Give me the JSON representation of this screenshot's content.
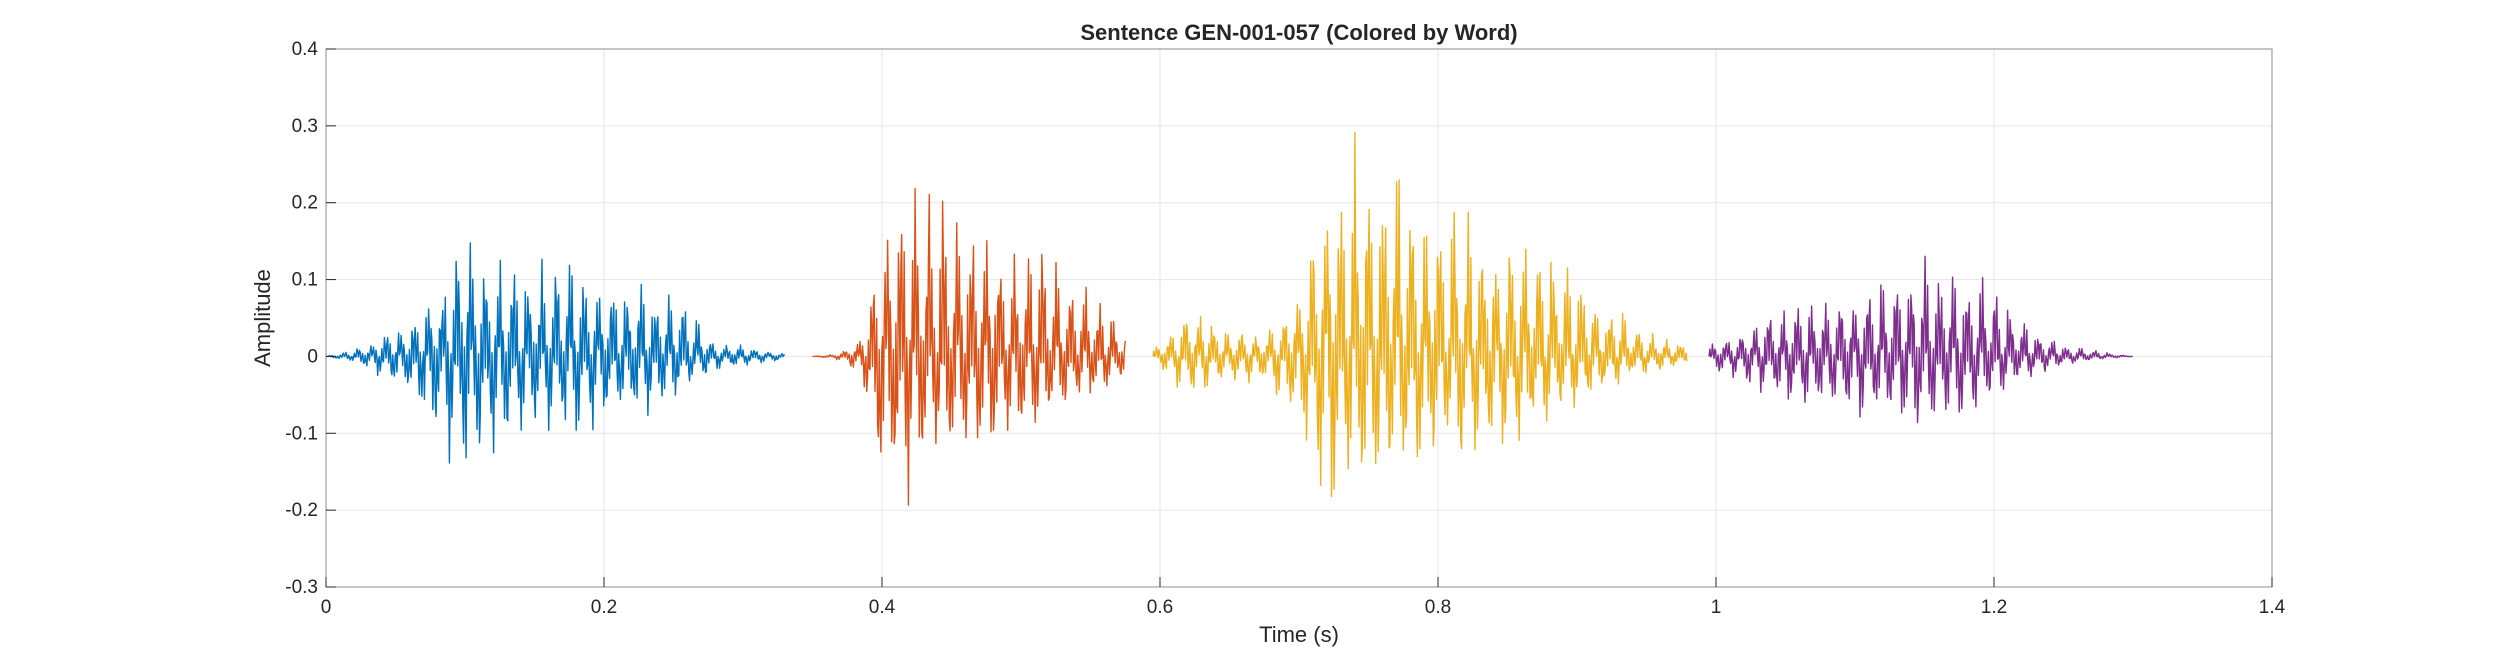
{
  "chart_data": {
    "type": "line",
    "title": "Sentence GEN-001-057 (Colored by Word)",
    "xlabel": "Time (s)",
    "ylabel": "Amplitude",
    "xlim": [
      0,
      1.4
    ],
    "ylim": [
      -0.3,
      0.4
    ],
    "xticks": [
      0,
      0.2,
      0.4,
      0.6,
      0.8,
      1,
      1.2,
      1.4
    ],
    "xtick_labels": [
      "0",
      "0.2",
      "0.4",
      "0.6",
      "0.8",
      "1",
      "1.2",
      "1.4"
    ],
    "yticks": [
      -0.3,
      -0.2,
      -0.1,
      0,
      0.1,
      0.2,
      0.3,
      0.4
    ],
    "ytick_labels": [
      "-0.3",
      "-0.2",
      "-0.1",
      "0",
      "0.1",
      "0.2",
      "0.3",
      "0.4"
    ],
    "grid": true,
    "series": [
      {
        "color": "#0072BD",
        "x": [
          0.0,
          0.02,
          0.04,
          0.06,
          0.08,
          0.1,
          0.12,
          0.14,
          0.16,
          0.18,
          0.2,
          0.22,
          0.24,
          0.26,
          0.28,
          0.3,
          0.33
        ],
        "upper": [
          0.0,
          0.01,
          0.03,
          0.06,
          0.1,
          0.18,
          0.14,
          0.12,
          0.14,
          0.13,
          0.12,
          0.11,
          0.1,
          0.08,
          0.02,
          0.015,
          0.005
        ],
        "lower": [
          0.0,
          -0.01,
          -0.03,
          -0.06,
          -0.12,
          -0.18,
          -0.15,
          -0.12,
          -0.11,
          -0.11,
          -0.1,
          -0.09,
          -0.08,
          -0.05,
          -0.02,
          -0.015,
          -0.005
        ]
      },
      {
        "color": "#D95319",
        "x": [
          0.35,
          0.37,
          0.385,
          0.395,
          0.405,
          0.42,
          0.44,
          0.46,
          0.48,
          0.5,
          0.52,
          0.54,
          0.56,
          0.575
        ],
        "upper": [
          0.0,
          0.005,
          0.03,
          0.15,
          0.26,
          0.25,
          0.23,
          0.22,
          0.2,
          0.17,
          0.15,
          0.12,
          0.08,
          0.04
        ],
        "lower": [
          0.0,
          -0.005,
          -0.03,
          -0.18,
          -0.25,
          -0.2,
          -0.16,
          -0.15,
          -0.14,
          -0.12,
          -0.1,
          -0.08,
          -0.05,
          -0.03
        ]
      },
      {
        "color": "#EDB120",
        "x": [
          0.595,
          0.62,
          0.65,
          0.68,
          0.7,
          0.72,
          0.74,
          0.76,
          0.78,
          0.8,
          0.82,
          0.84,
          0.86,
          0.88,
          0.9,
          0.92,
          0.94,
          0.96,
          0.98
        ],
        "upper": [
          0.01,
          0.07,
          0.04,
          0.04,
          0.1,
          0.3,
          0.33,
          0.3,
          0.25,
          0.23,
          0.2,
          0.19,
          0.19,
          0.16,
          0.12,
          0.08,
          0.05,
          0.03,
          0.02
        ],
        "lower": [
          -0.01,
          -0.06,
          -0.04,
          -0.04,
          -0.12,
          -0.23,
          -0.21,
          -0.2,
          -0.18,
          -0.16,
          -0.15,
          -0.14,
          -0.13,
          -0.1,
          -0.08,
          -0.05,
          -0.03,
          -0.02,
          -0.01
        ]
      },
      {
        "color": "#7E2F8E",
        "x": [
          0.995,
          1.01,
          1.03,
          1.05,
          1.07,
          1.09,
          1.11,
          1.13,
          1.15,
          1.17,
          1.19,
          1.21,
          1.23,
          1.25,
          1.27,
          1.3
        ],
        "upper": [
          0.02,
          0.03,
          0.06,
          0.08,
          0.08,
          0.09,
          0.1,
          0.12,
          0.15,
          0.13,
          0.12,
          0.08,
          0.04,
          0.02,
          0.01,
          0.0
        ],
        "lower": [
          -0.02,
          -0.03,
          -0.05,
          -0.07,
          -0.08,
          -0.08,
          -0.09,
          -0.1,
          -0.12,
          -0.1,
          -0.08,
          -0.05,
          -0.03,
          -0.015,
          -0.005,
          0.0
        ]
      }
    ]
  }
}
